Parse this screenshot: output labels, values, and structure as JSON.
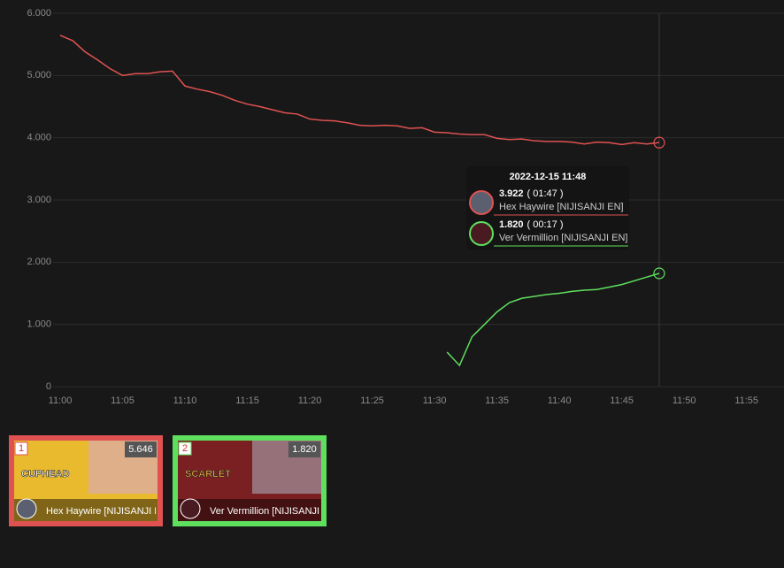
{
  "chart_data": {
    "type": "line",
    "x": [
      "11:00",
      "11:01",
      "11:02",
      "11:03",
      "11:04",
      "11:05",
      "11:06",
      "11:07",
      "11:08",
      "11:09",
      "11:10",
      "11:11",
      "11:12",
      "11:13",
      "11:14",
      "11:15",
      "11:16",
      "11:17",
      "11:18",
      "11:19",
      "11:20",
      "11:21",
      "11:22",
      "11:23",
      "11:24",
      "11:25",
      "11:26",
      "11:27",
      "11:28",
      "11:29",
      "11:30",
      "11:31",
      "11:32",
      "11:33",
      "11:34",
      "11:35",
      "11:36",
      "11:37",
      "11:38",
      "11:39",
      "11:40",
      "11:41",
      "11:42",
      "11:43",
      "11:44",
      "11:45",
      "11:46",
      "11:47",
      "11:48"
    ],
    "series": [
      {
        "name": "Hex Haywire [NIJISANJI EN]",
        "color": "#e05252",
        "values": [
          5646,
          5560,
          5380,
          5250,
          5110,
          5000,
          5030,
          5030,
          5060,
          5070,
          4830,
          4780,
          4740,
          4680,
          4600,
          4540,
          4500,
          4450,
          4400,
          4380,
          4300,
          4280,
          4270,
          4240,
          4200,
          4190,
          4200,
          4190,
          4150,
          4160,
          4090,
          4080,
          4060,
          4050,
          4050,
          3990,
          3970,
          3980,
          3950,
          3940,
          3940,
          3930,
          3900,
          3930,
          3920,
          3890,
          3920,
          3900,
          3922
        ]
      },
      {
        "name": "Ver Vermillion [NIJISANJI EN]",
        "color": "#5ee05e",
        "values": [
          null,
          null,
          null,
          null,
          null,
          null,
          null,
          null,
          null,
          null,
          null,
          null,
          null,
          null,
          null,
          null,
          null,
          null,
          null,
          null,
          null,
          null,
          null,
          null,
          null,
          null,
          null,
          null,
          null,
          null,
          null,
          555,
          340,
          800,
          1000,
          1200,
          1350,
          1420,
          1450,
          1480,
          1500,
          1530,
          1550,
          1560,
          1600,
          1640,
          1700,
          1760,
          1820
        ]
      }
    ],
    "xlim": [
      "11:00",
      "11:58"
    ],
    "xticks": [
      "11:00",
      "11:05",
      "11:10",
      "11:15",
      "11:20",
      "11:25",
      "11:30",
      "11:35",
      "11:40",
      "11:45",
      "11:50",
      "11:55"
    ],
    "ylim": [
      0,
      6000
    ],
    "yticks": [
      0,
      {
        "value": 1000,
        "label": "1.000"
      },
      {
        "value": 2000,
        "label": "2.000"
      },
      {
        "value": 3000,
        "label": "3.000"
      },
      {
        "value": 4000,
        "label": "4.000"
      },
      {
        "value": 5000,
        "label": "5.000"
      },
      {
        "value": 6000,
        "label": "6.000"
      }
    ],
    "grid": true
  },
  "tooltip": {
    "title": "2022-12-15 11:48",
    "x": "11:48",
    "items": [
      {
        "value": "3.922",
        "duration": "( 01:47 )",
        "name": "Hex Haywire [NIJISANJI EN]"
      },
      {
        "value": "1.820",
        "duration": "( 00:17 )",
        "name": "Ver Vermillion [NIJISANJI EN]"
      }
    ]
  },
  "cards": [
    {
      "rank": "1",
      "value": "5.646",
      "name": "Hex Haywire [NIJISANJI EN]",
      "thumb_text": "CUPHEAD"
    },
    {
      "rank": "2",
      "value": "1.820",
      "name": "Ver Vermillion [NIJISANJI EN]",
      "thumb_text": "SCARLET"
    }
  ]
}
